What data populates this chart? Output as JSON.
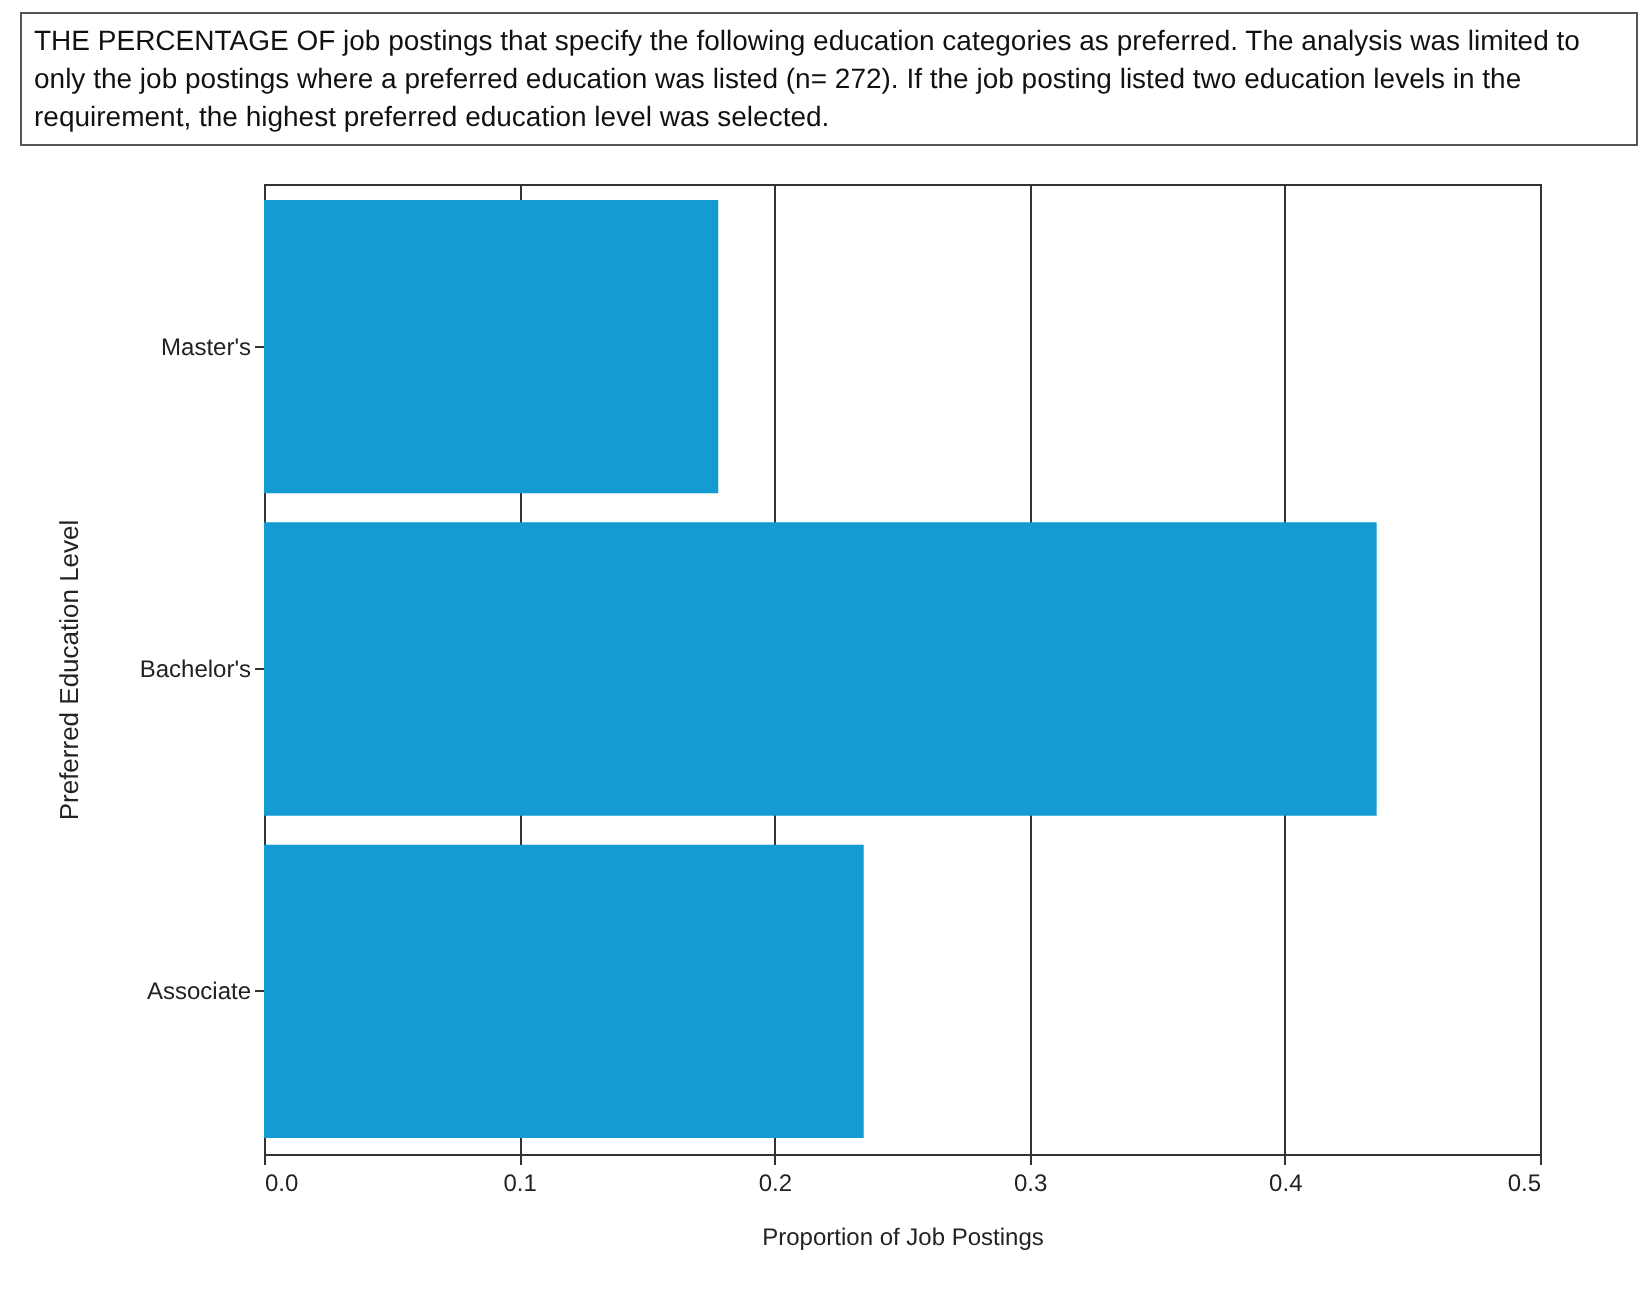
{
  "chart_data": {
    "type": "bar",
    "orientation": "horizontal",
    "title": "THE PERCENTAGE OF job postings that specify the following education categories as preferred. The analysis was limited to only the job postings where a preferred education was listed (n= 272). If the job posting listed two education levels in the requirement, the highest preferred education level was selected.",
    "xlabel": "Proportion of Job Postings",
    "ylabel": "Preferred Education Level",
    "categories": [
      "Master's",
      "Bachelor's",
      "Associate"
    ],
    "values": [
      0.178,
      0.436,
      0.235
    ],
    "color": "#149bd2",
    "xlim": [
      0,
      0.5
    ],
    "xticks": [
      {
        "value": 0,
        "label": "0.0"
      },
      0.1,
      0.2,
      0.3,
      0.4,
      0.5
    ],
    "grid": "x"
  }
}
